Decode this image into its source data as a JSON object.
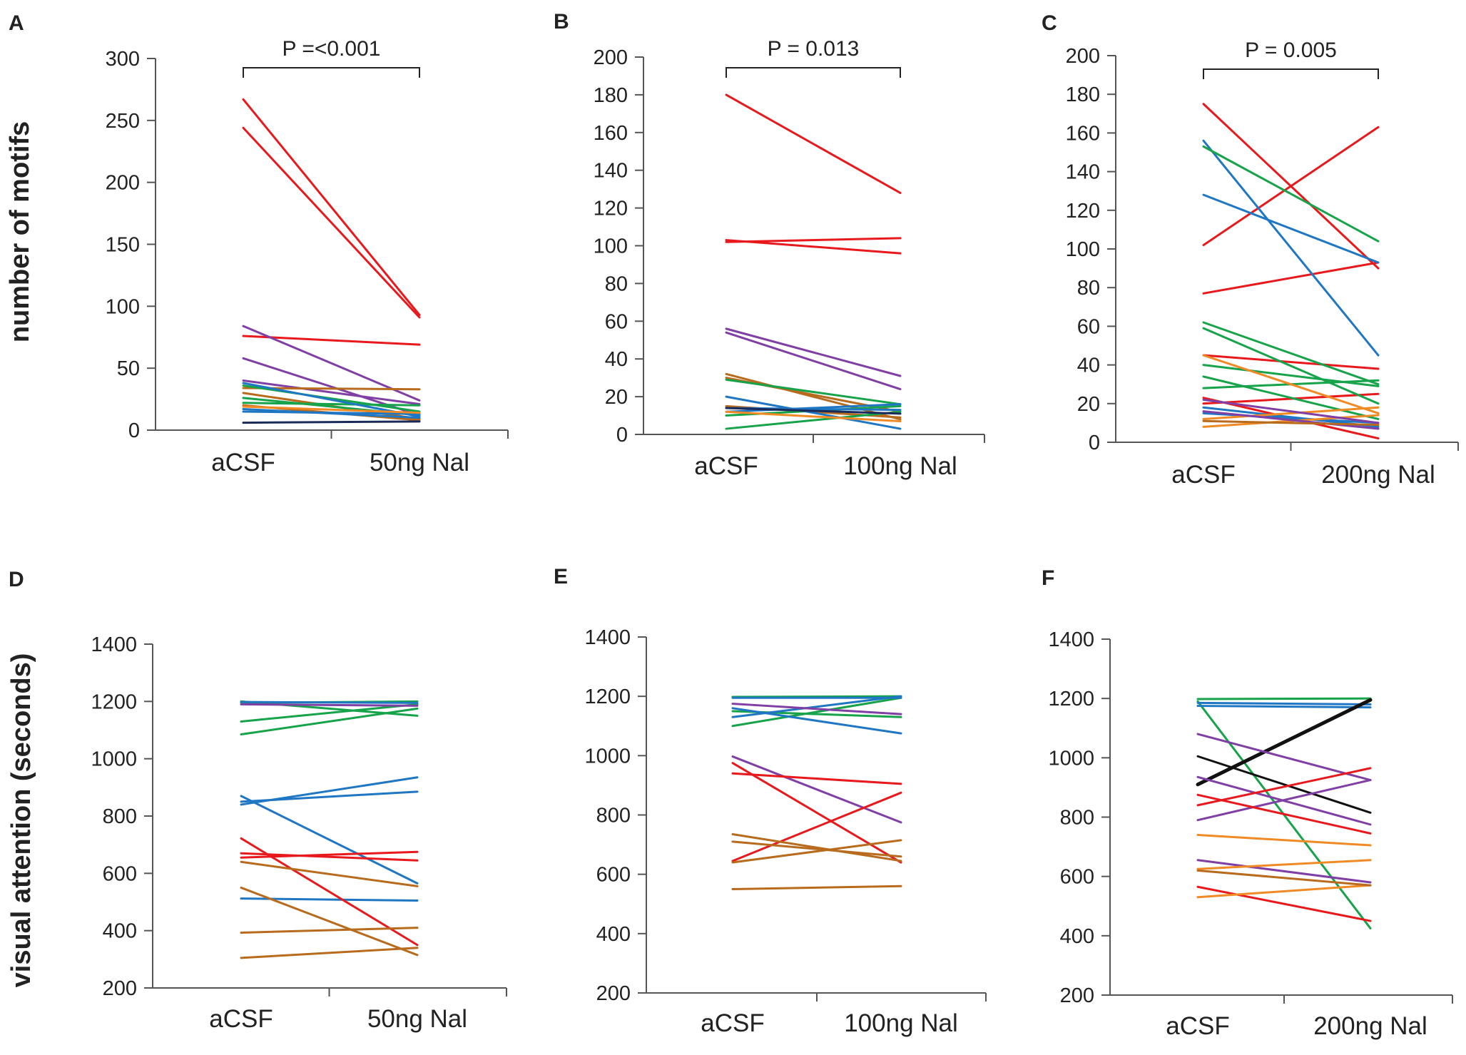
{
  "figure": {
    "ylabel_top": "number of motifs",
    "ylabel_bottom": "visual attention (seconds)"
  },
  "chart_data": [
    {
      "panel": "A",
      "type": "line",
      "categories": [
        "aCSF",
        "50ng Nal"
      ],
      "ylim": [
        0,
        300
      ],
      "yticks": [
        0,
        50,
        100,
        150,
        200,
        250,
        300
      ],
      "annotation": "P =<0.001",
      "series": [
        {
          "color": "#e8191c",
          "values": [
            267,
            93
          ]
        },
        {
          "color": "#e8191c",
          "values": [
            244,
            91
          ]
        },
        {
          "color": "#e8191c",
          "values": [
            76,
            69
          ]
        },
        {
          "color": "#7f3fa5",
          "values": [
            84,
            24
          ]
        },
        {
          "color": "#7f3fa5",
          "values": [
            58,
            12
          ]
        },
        {
          "color": "#7f3fa5",
          "values": [
            40,
            21
          ]
        },
        {
          "color": "#b86b1d",
          "values": [
            34,
            33
          ]
        },
        {
          "color": "#b86b1d",
          "values": [
            30,
            9
          ]
        },
        {
          "color": "#b86b1d",
          "values": [
            20,
            8
          ]
        },
        {
          "color": "#16a34a",
          "values": [
            36,
            15
          ]
        },
        {
          "color": "#16a34a",
          "values": [
            26,
            12
          ]
        },
        {
          "color": "#16a34a",
          "values": [
            22,
            20
          ]
        },
        {
          "color": "#1f77c4",
          "values": [
            38,
            11
          ]
        },
        {
          "color": "#1f77c4",
          "values": [
            17,
            10
          ]
        },
        {
          "color": "#1f77c4",
          "values": [
            15,
            13
          ]
        },
        {
          "color": "#f08a24",
          "values": [
            19,
            14
          ]
        },
        {
          "color": "#1a2a5a",
          "values": [
            6,
            7
          ]
        }
      ]
    },
    {
      "panel": "B",
      "type": "line",
      "categories": [
        "aCSF",
        "100ng Nal"
      ],
      "ylim": [
        0,
        200
      ],
      "yticks": [
        0,
        20,
        40,
        60,
        80,
        100,
        120,
        140,
        160,
        180,
        200
      ],
      "annotation": "P = 0.013",
      "series": [
        {
          "color": "#e8191c",
          "values": [
            180,
            128
          ]
        },
        {
          "color": "#e8191c",
          "values": [
            102,
            104
          ]
        },
        {
          "color": "#e8191c",
          "values": [
            103,
            96
          ]
        },
        {
          "color": "#7f3fa5",
          "values": [
            56,
            31
          ]
        },
        {
          "color": "#7f3fa5",
          "values": [
            54,
            24
          ]
        },
        {
          "color": "#b86b1d",
          "values": [
            32,
            8
          ]
        },
        {
          "color": "#b86b1d",
          "values": [
            30,
            12
          ]
        },
        {
          "color": "#b86b1d",
          "values": [
            15,
            9
          ]
        },
        {
          "color": "#16a34a",
          "values": [
            29,
            16
          ]
        },
        {
          "color": "#16a34a",
          "values": [
            3,
            12
          ]
        },
        {
          "color": "#16a34a",
          "values": [
            10,
            15
          ]
        },
        {
          "color": "#1f77c4",
          "values": [
            20,
            3
          ]
        },
        {
          "color": "#1f77c4",
          "values": [
            14,
            13
          ]
        },
        {
          "color": "#1f77c4",
          "values": [
            12,
            16
          ]
        },
        {
          "color": "#f08a24",
          "values": [
            12,
            7
          ]
        },
        {
          "color": "#1a2a5a",
          "values": [
            14,
            11
          ]
        }
      ]
    },
    {
      "panel": "C",
      "type": "line",
      "categories": [
        "aCSF",
        "200ng Nal"
      ],
      "ylim": [
        0,
        200
      ],
      "yticks": [
        0,
        20,
        40,
        60,
        80,
        100,
        120,
        140,
        160,
        180,
        200
      ],
      "annotation": "P = 0.005",
      "series": [
        {
          "color": "#e8191c",
          "values": [
            175,
            90
          ]
        },
        {
          "color": "#e8191c",
          "values": [
            102,
            163
          ]
        },
        {
          "color": "#e8191c",
          "values": [
            77,
            93
          ]
        },
        {
          "color": "#e8191c",
          "values": [
            45,
            38
          ]
        },
        {
          "color": "#e8191c",
          "values": [
            23,
            2
          ]
        },
        {
          "color": "#e8191c",
          "values": [
            20,
            25
          ]
        },
        {
          "color": "#1f77c4",
          "values": [
            156,
            45
          ]
        },
        {
          "color": "#1f77c4",
          "values": [
            128,
            93
          ]
        },
        {
          "color": "#1f77c4",
          "values": [
            18,
            8
          ]
        },
        {
          "color": "#1f77c4",
          "values": [
            15,
            10
          ]
        },
        {
          "color": "#16a34a",
          "values": [
            153,
            104
          ]
        },
        {
          "color": "#16a34a",
          "values": [
            62,
            30
          ]
        },
        {
          "color": "#16a34a",
          "values": [
            59,
            20
          ]
        },
        {
          "color": "#16a34a",
          "values": [
            40,
            29
          ]
        },
        {
          "color": "#16a34a",
          "values": [
            34,
            12
          ]
        },
        {
          "color": "#16a34a",
          "values": [
            28,
            32
          ]
        },
        {
          "color": "#f08a24",
          "values": [
            45,
            15
          ]
        },
        {
          "color": "#f08a24",
          "values": [
            12,
            18
          ]
        },
        {
          "color": "#f08a24",
          "values": [
            8,
            14
          ]
        },
        {
          "color": "#7f3fa5",
          "values": [
            22,
            10
          ]
        },
        {
          "color": "#7f3fa5",
          "values": [
            16,
            7
          ]
        },
        {
          "color": "#b86b1d",
          "values": [
            11,
            9
          ]
        }
      ]
    },
    {
      "panel": "D",
      "type": "line",
      "categories": [
        "aCSF",
        "50ng Nal"
      ],
      "ylim": [
        200,
        1400
      ],
      "yticks": [
        200,
        400,
        600,
        800,
        1000,
        1200,
        1400
      ],
      "series": [
        {
          "color": "#16a34a",
          "values": [
            1195,
            1200
          ]
        },
        {
          "color": "#16a34a",
          "values": [
            1130,
            1190
          ]
        },
        {
          "color": "#16a34a",
          "values": [
            1085,
            1175
          ]
        },
        {
          "color": "#16a34a",
          "values": [
            1200,
            1150
          ]
        },
        {
          "color": "#7f3fa5",
          "values": [
            1190,
            1185
          ]
        },
        {
          "color": "#1f77c4",
          "values": [
            1198,
            1195
          ]
        },
        {
          "color": "#1f77c4",
          "values": [
            870,
            565
          ]
        },
        {
          "color": "#1f77c4",
          "values": [
            840,
            935
          ]
        },
        {
          "color": "#1f77c4",
          "values": [
            850,
            885
          ]
        },
        {
          "color": "#1f77c4",
          "values": [
            512,
            505
          ]
        },
        {
          "color": "#e8191c",
          "values": [
            722,
            350
          ]
        },
        {
          "color": "#e8191c",
          "values": [
            670,
            645
          ]
        },
        {
          "color": "#e8191c",
          "values": [
            655,
            675
          ]
        },
        {
          "color": "#b86b1d",
          "values": [
            640,
            555
          ]
        },
        {
          "color": "#b86b1d",
          "values": [
            550,
            315
          ]
        },
        {
          "color": "#b86b1d",
          "values": [
            393,
            410
          ]
        },
        {
          "color": "#b86b1d",
          "values": [
            305,
            340
          ]
        }
      ]
    },
    {
      "panel": "E",
      "type": "line",
      "categories": [
        "aCSF",
        "100ng Nal"
      ],
      "ylim": [
        200,
        1400
      ],
      "yticks": [
        200,
        400,
        600,
        800,
        1000,
        1200,
        1400
      ],
      "series": [
        {
          "color": "#16a34a",
          "values": [
            1198,
            1200
          ]
        },
        {
          "color": "#16a34a",
          "values": [
            1100,
            1195
          ]
        },
        {
          "color": "#16a34a",
          "values": [
            1150,
            1130
          ]
        },
        {
          "color": "#1f77c4",
          "values": [
            1195,
            1195
          ]
        },
        {
          "color": "#1f77c4",
          "values": [
            1160,
            1075
          ]
        },
        {
          "color": "#1f77c4",
          "values": [
            1130,
            1200
          ]
        },
        {
          "color": "#7f3fa5",
          "values": [
            1175,
            1140
          ]
        },
        {
          "color": "#7f3fa5",
          "values": [
            997,
            775
          ]
        },
        {
          "color": "#e8191c",
          "values": [
            975,
            640
          ]
        },
        {
          "color": "#e8191c",
          "values": [
            940,
            905
          ]
        },
        {
          "color": "#e8191c",
          "values": [
            645,
            875
          ]
        },
        {
          "color": "#b86b1d",
          "values": [
            735,
            645
          ]
        },
        {
          "color": "#b86b1d",
          "values": [
            710,
            660
          ]
        },
        {
          "color": "#b86b1d",
          "values": [
            640,
            715
          ]
        },
        {
          "color": "#b86b1d",
          "values": [
            550,
            560
          ]
        }
      ]
    },
    {
      "panel": "F",
      "type": "line",
      "categories": [
        "aCSF",
        "200ng Nal"
      ],
      "ylim": [
        200,
        1400
      ],
      "yticks": [
        200,
        400,
        600,
        800,
        1000,
        1200,
        1400
      ],
      "series": [
        {
          "color": "#16a34a",
          "values": [
            1198,
            1200
          ]
        },
        {
          "color": "#16a34a",
          "values": [
            1190,
            425
          ]
        },
        {
          "color": "#1f77c4",
          "values": [
            1185,
            1180
          ]
        },
        {
          "color": "#1f77c4",
          "values": [
            1175,
            1170
          ]
        },
        {
          "color": "#111111",
          "values": [
            910,
            1195
          ],
          "bold": true
        },
        {
          "color": "#111111",
          "values": [
            1005,
            815
          ]
        },
        {
          "color": "#7f3fa5",
          "values": [
            1080,
            925
          ]
        },
        {
          "color": "#7f3fa5",
          "values": [
            935,
            775
          ]
        },
        {
          "color": "#7f3fa5",
          "values": [
            790,
            925
          ]
        },
        {
          "color": "#7f3fa5",
          "values": [
            655,
            580
          ]
        },
        {
          "color": "#e8191c",
          "values": [
            875,
            745
          ]
        },
        {
          "color": "#e8191c",
          "values": [
            840,
            965
          ]
        },
        {
          "color": "#e8191c",
          "values": [
            565,
            450
          ]
        },
        {
          "color": "#f08a24",
          "values": [
            740,
            705
          ]
        },
        {
          "color": "#f08a24",
          "values": [
            625,
            655
          ]
        },
        {
          "color": "#f08a24",
          "values": [
            530,
            570
          ]
        },
        {
          "color": "#b86b1d",
          "values": [
            620,
            570
          ]
        }
      ]
    }
  ]
}
